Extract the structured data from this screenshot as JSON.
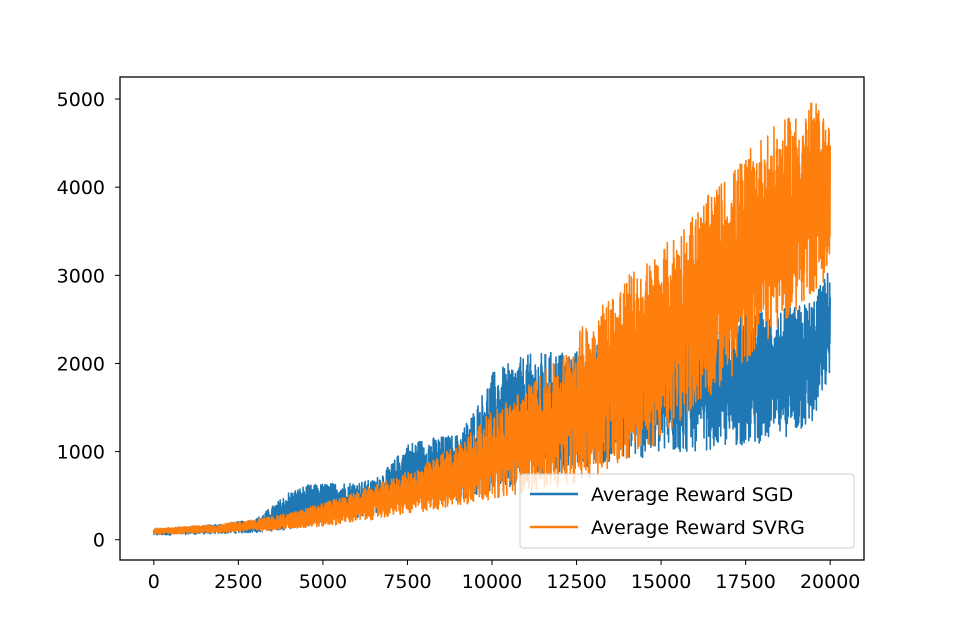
{
  "chart_data": {
    "type": "line",
    "title": "",
    "xlabel": "",
    "ylabel": "",
    "xlim": [
      -1000,
      21000
    ],
    "ylim": [
      -230,
      5250
    ],
    "xticks": [
      0,
      2500,
      5000,
      7500,
      10000,
      12500,
      15000,
      17500,
      20000
    ],
    "yticks": [
      0,
      1000,
      2000,
      3000,
      4000,
      5000
    ],
    "xtick_labels": [
      "0",
      "2500",
      "5000",
      "7500",
      "10000",
      "12500",
      "15000",
      "17500",
      "20000"
    ],
    "ytick_labels": [
      "0",
      "1000",
      "2000",
      "3000",
      "4000",
      "5000"
    ],
    "grid": false,
    "legend_position": "lower-right",
    "series": [
      {
        "name": "Average Reward SGD",
        "color": "#1f77b4",
        "x": [
          0,
          1000,
          2000,
          3000,
          3500,
          4000,
          4500,
          5000,
          6000,
          6500,
          7000,
          7500,
          8000,
          9000,
          9500,
          10000,
          11000,
          12000,
          12500,
          13000,
          14000,
          15000,
          16000,
          17000,
          18000,
          19000,
          19500,
          20000
        ],
        "upper": [
          120,
          150,
          180,
          230,
          380,
          550,
          620,
          640,
          660,
          680,
          850,
          1100,
          1150,
          1200,
          1500,
          1900,
          2100,
          2150,
          2150,
          2200,
          2400,
          2450,
          2500,
          2550,
          2600,
          2650,
          2750,
          3100
        ],
        "lower": [
          50,
          60,
          70,
          80,
          100,
          120,
          150,
          200,
          250,
          300,
          350,
          400,
          430,
          450,
          500,
          550,
          650,
          750,
          800,
          850,
          900,
          950,
          1000,
          1050,
          1100,
          1200,
          1300,
          1850
        ]
      },
      {
        "name": "Average Reward SVRG",
        "color": "#ff7f0e",
        "x": [
          0,
          1000,
          2000,
          3000,
          4000,
          5000,
          6000,
          7000,
          8000,
          9000,
          10000,
          11000,
          12000,
          13000,
          14000,
          15000,
          16000,
          17000,
          18000,
          19000,
          19500,
          20000
        ],
        "upper": [
          130,
          150,
          180,
          230,
          300,
          420,
          540,
          690,
          850,
          1100,
          1460,
          1740,
          2060,
          2600,
          3000,
          3300,
          3750,
          4150,
          4600,
          4850,
          5000,
          4700
        ],
        "lower": [
          60,
          70,
          80,
          100,
          120,
          150,
          200,
          260,
          320,
          380,
          460,
          540,
          600,
          700,
          900,
          1100,
          1500,
          1800,
          2200,
          2600,
          2800,
          3000
        ]
      }
    ]
  }
}
